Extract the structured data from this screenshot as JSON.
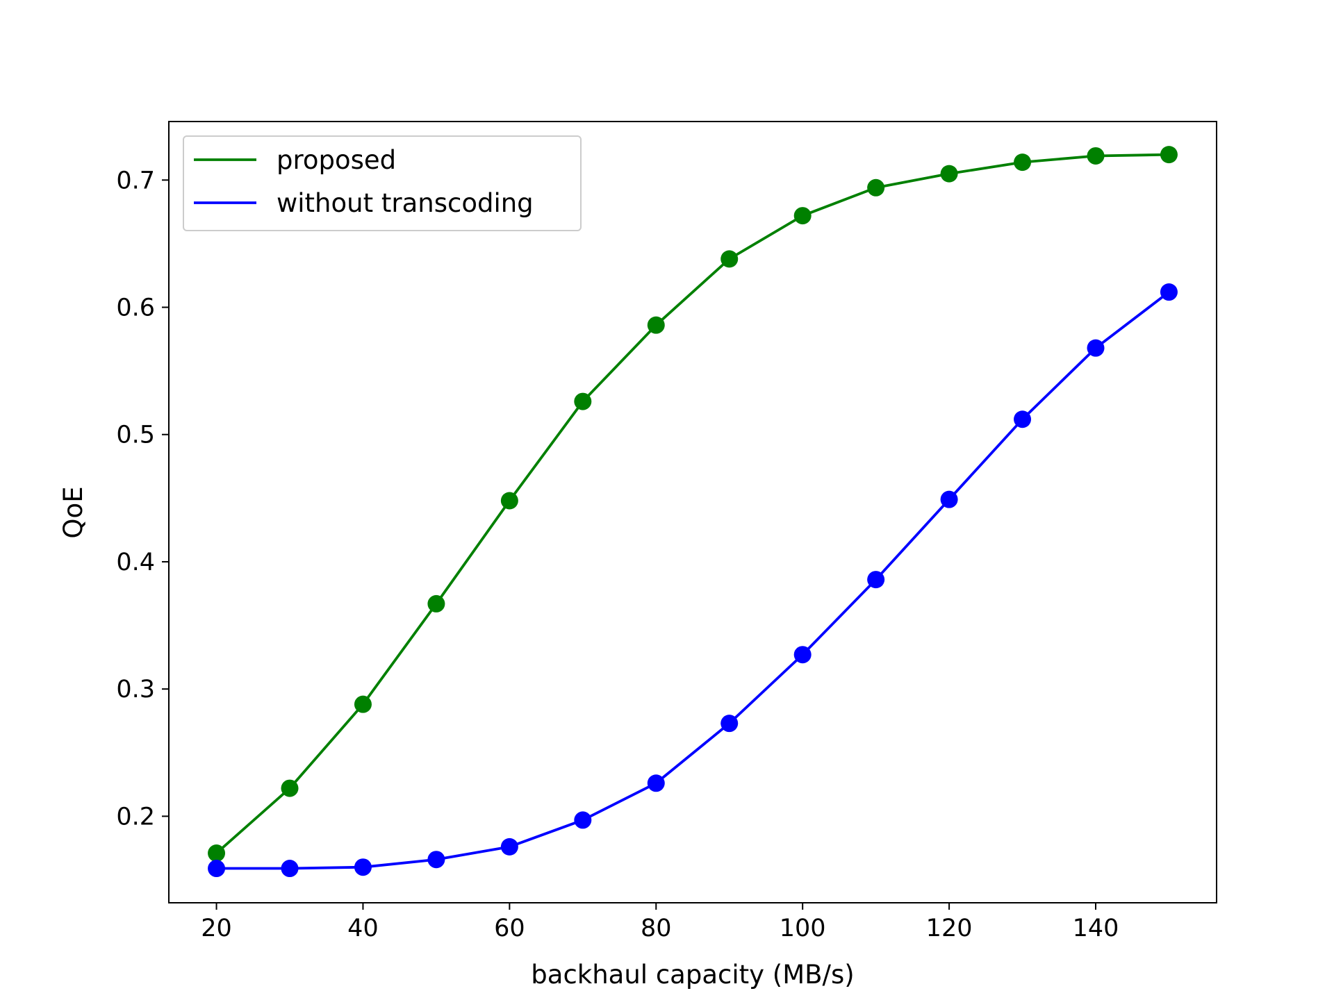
{
  "chart_data": {
    "type": "line",
    "title": "",
    "xlabel": "backhaul capacity (MB/s)",
    "ylabel": "QoE",
    "x": [
      20,
      30,
      40,
      50,
      60,
      70,
      80,
      90,
      100,
      110,
      120,
      130,
      140,
      150
    ],
    "xlim": [
      13.5,
      156.5
    ],
    "ylim": [
      0.132,
      0.746
    ],
    "xticks": [
      20,
      40,
      60,
      80,
      100,
      120,
      140
    ],
    "yticks": [
      0.2,
      0.3,
      0.4,
      0.5,
      0.6,
      0.7
    ],
    "xtick_labels": [
      "20",
      "40",
      "60",
      "80",
      "100",
      "120",
      "140"
    ],
    "ytick_labels": [
      "0.2",
      "0.3",
      "0.4",
      "0.5",
      "0.6",
      "0.7"
    ],
    "grid": false,
    "legend_position": "top-left",
    "series": [
      {
        "name": "proposed",
        "color": "#008000",
        "marker": "circle",
        "values": [
          0.171,
          0.222,
          0.288,
          0.367,
          0.448,
          0.526,
          0.586,
          0.638,
          0.672,
          0.694,
          0.705,
          0.714,
          0.719,
          0.72
        ]
      },
      {
        "name": "without transcoding",
        "color": "#0000ff",
        "marker": "circle",
        "values": [
          0.159,
          0.159,
          0.16,
          0.166,
          0.176,
          0.197,
          0.226,
          0.273,
          0.327,
          0.386,
          0.449,
          0.512,
          0.568,
          0.612
        ]
      }
    ]
  }
}
